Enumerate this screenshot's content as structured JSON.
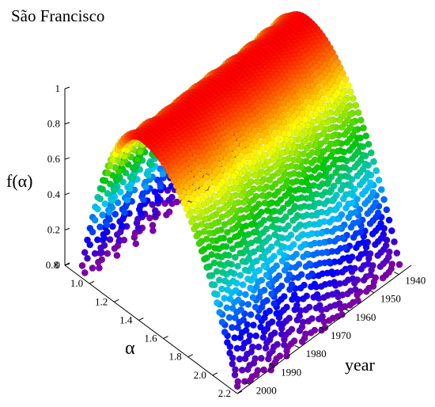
{
  "chart_data": {
    "type": "surface",
    "title": "São Francisco",
    "zlabel": "f(α)",
    "xlabel": "α",
    "ylabel": "year",
    "alpha_ticks": [
      "0.8",
      "1.0",
      "1.2",
      "1.4",
      "1.6",
      "1.8",
      "2.0",
      "2.2"
    ],
    "year_ticks": [
      "1940",
      "1950",
      "1960",
      "1970",
      "1980",
      "1990",
      "2000"
    ],
    "z_ticks": [
      "0",
      "0.2",
      "0.4",
      "0.6",
      "0.8",
      "1"
    ],
    "alpha_range": [
      0.8,
      2.2
    ],
    "year_range": [
      1935,
      2005
    ],
    "z_range": [
      0,
      1
    ],
    "colormap": [
      "#7a00a8",
      "#0000ff",
      "#00c8ff",
      "#00c800",
      "#ffff00",
      "#ff0000"
    ],
    "grid": false,
    "series": [
      {
        "year": 1940,
        "alpha_min": 0.88,
        "alpha_peak": 1.39,
        "alpha_max": 2.14,
        "f_peak": 1.0
      },
      {
        "year": 1950,
        "alpha_min": 0.9,
        "alpha_peak": 1.4,
        "alpha_max": 2.15,
        "f_peak": 1.0
      },
      {
        "year": 1960,
        "alpha_min": 0.92,
        "alpha_peak": 1.4,
        "alpha_max": 2.17,
        "f_peak": 1.0
      },
      {
        "year": 1970,
        "alpha_min": 0.9,
        "alpha_peak": 1.41,
        "alpha_max": 2.18,
        "f_peak": 1.0
      },
      {
        "year": 1980,
        "alpha_min": 0.93,
        "alpha_peak": 1.4,
        "alpha_max": 2.15,
        "f_peak": 1.0
      },
      {
        "year": 1990,
        "alpha_min": 0.91,
        "alpha_peak": 1.42,
        "alpha_max": 2.19,
        "f_peak": 1.0
      },
      {
        "year": 2000,
        "alpha_min": 0.92,
        "alpha_peak": 1.4,
        "alpha_max": 2.16,
        "f_peak": 1.0
      }
    ]
  }
}
